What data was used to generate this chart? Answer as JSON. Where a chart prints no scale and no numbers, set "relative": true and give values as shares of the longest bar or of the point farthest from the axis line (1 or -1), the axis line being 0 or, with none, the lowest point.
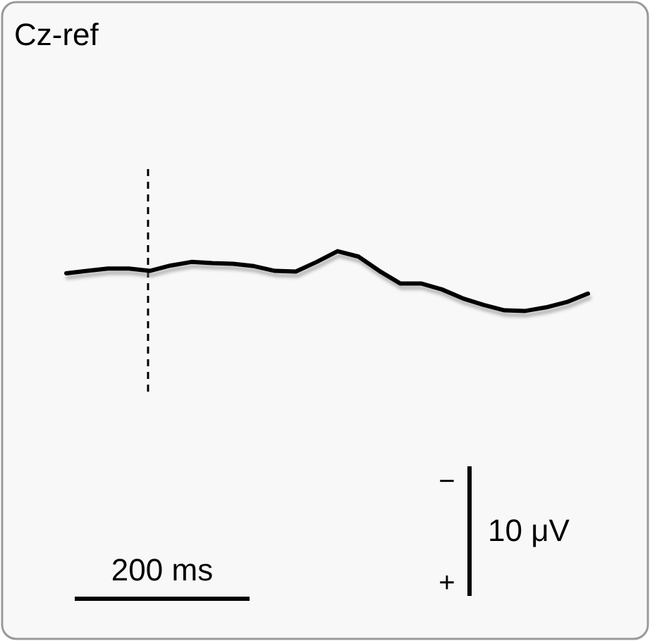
{
  "chart_data": {
    "type": "line",
    "title": "Cz-ref",
    "relative": true,
    "categories": [
      null,
      null,
      null,
      null,
      null,
      null,
      null,
      null,
      null,
      null,
      null,
      null,
      null,
      null,
      null,
      null,
      null,
      null,
      null,
      null,
      null,
      null,
      null,
      null,
      null,
      null
    ],
    "series": [
      {
        "color": "#000000",
        "values": [
          0.63,
          0.67,
          0.71,
          0.71,
          0.67,
          0.76,
          0.82,
          0.8,
          0.79,
          0.75,
          0.67,
          0.66,
          0.82,
          1,
          0.91,
          0.67,
          0.46,
          0.46,
          0.36,
          0.21,
          0.1,
          0.01,
          0,
          0.06,
          0.15,
          0.29
        ]
      }
    ],
    "marker": "none",
    "line_style": "solid",
    "annotations": [
      "200 ms",
      "−",
      "+",
      "10 μV"
    ]
  }
}
